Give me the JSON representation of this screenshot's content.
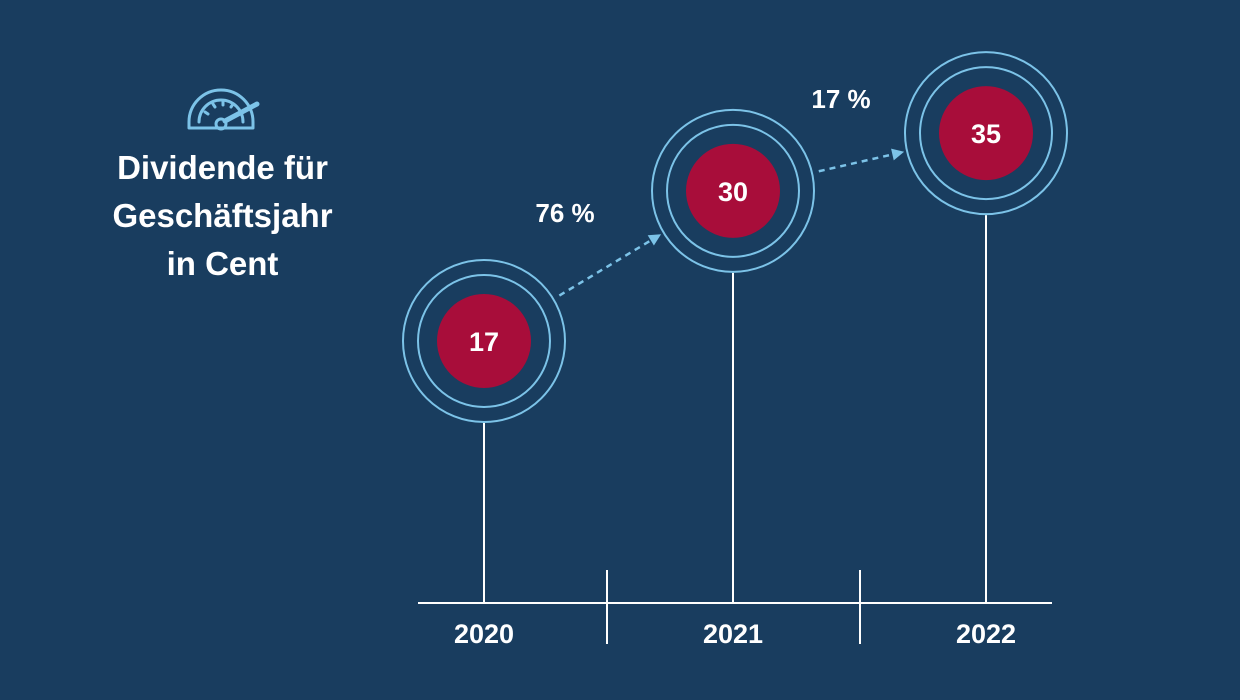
{
  "colors": {
    "background": "#193d5f",
    "ring": "#7cc3e8",
    "dot": "#a80d3a",
    "line": "#ffffff",
    "arrow": "#7cc3e8"
  },
  "icon": "speedometer-icon",
  "chart_data": {
    "type": "bubble-timeline",
    "title": "Dividende für\nGeschäftsjahr\nin Cent",
    "categories": [
      "2020",
      "2021",
      "2022"
    ],
    "values": [
      17,
      30,
      35
    ],
    "unit": "Cent",
    "growth_labels": [
      "76 %",
      "17 %"
    ],
    "ylim": [
      0,
      40
    ],
    "grid": false,
    "legend": "none"
  }
}
